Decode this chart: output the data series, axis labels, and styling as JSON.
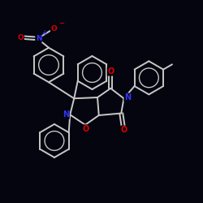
{
  "background_color": "#050510",
  "bond_color": "#c8c8c8",
  "bond_width": 1.4,
  "atom_colors": {
    "N_nitro": "#3333ff",
    "O_nitro": "#dd0000",
    "N_ring": "#3333ff",
    "O_ring": "#dd0000",
    "C": "#c8c8c8"
  },
  "fig_width": 2.5,
  "fig_height": 2.5,
  "dpi": 100,
  "xlim": [
    0,
    10
  ],
  "ylim": [
    0,
    10
  ]
}
